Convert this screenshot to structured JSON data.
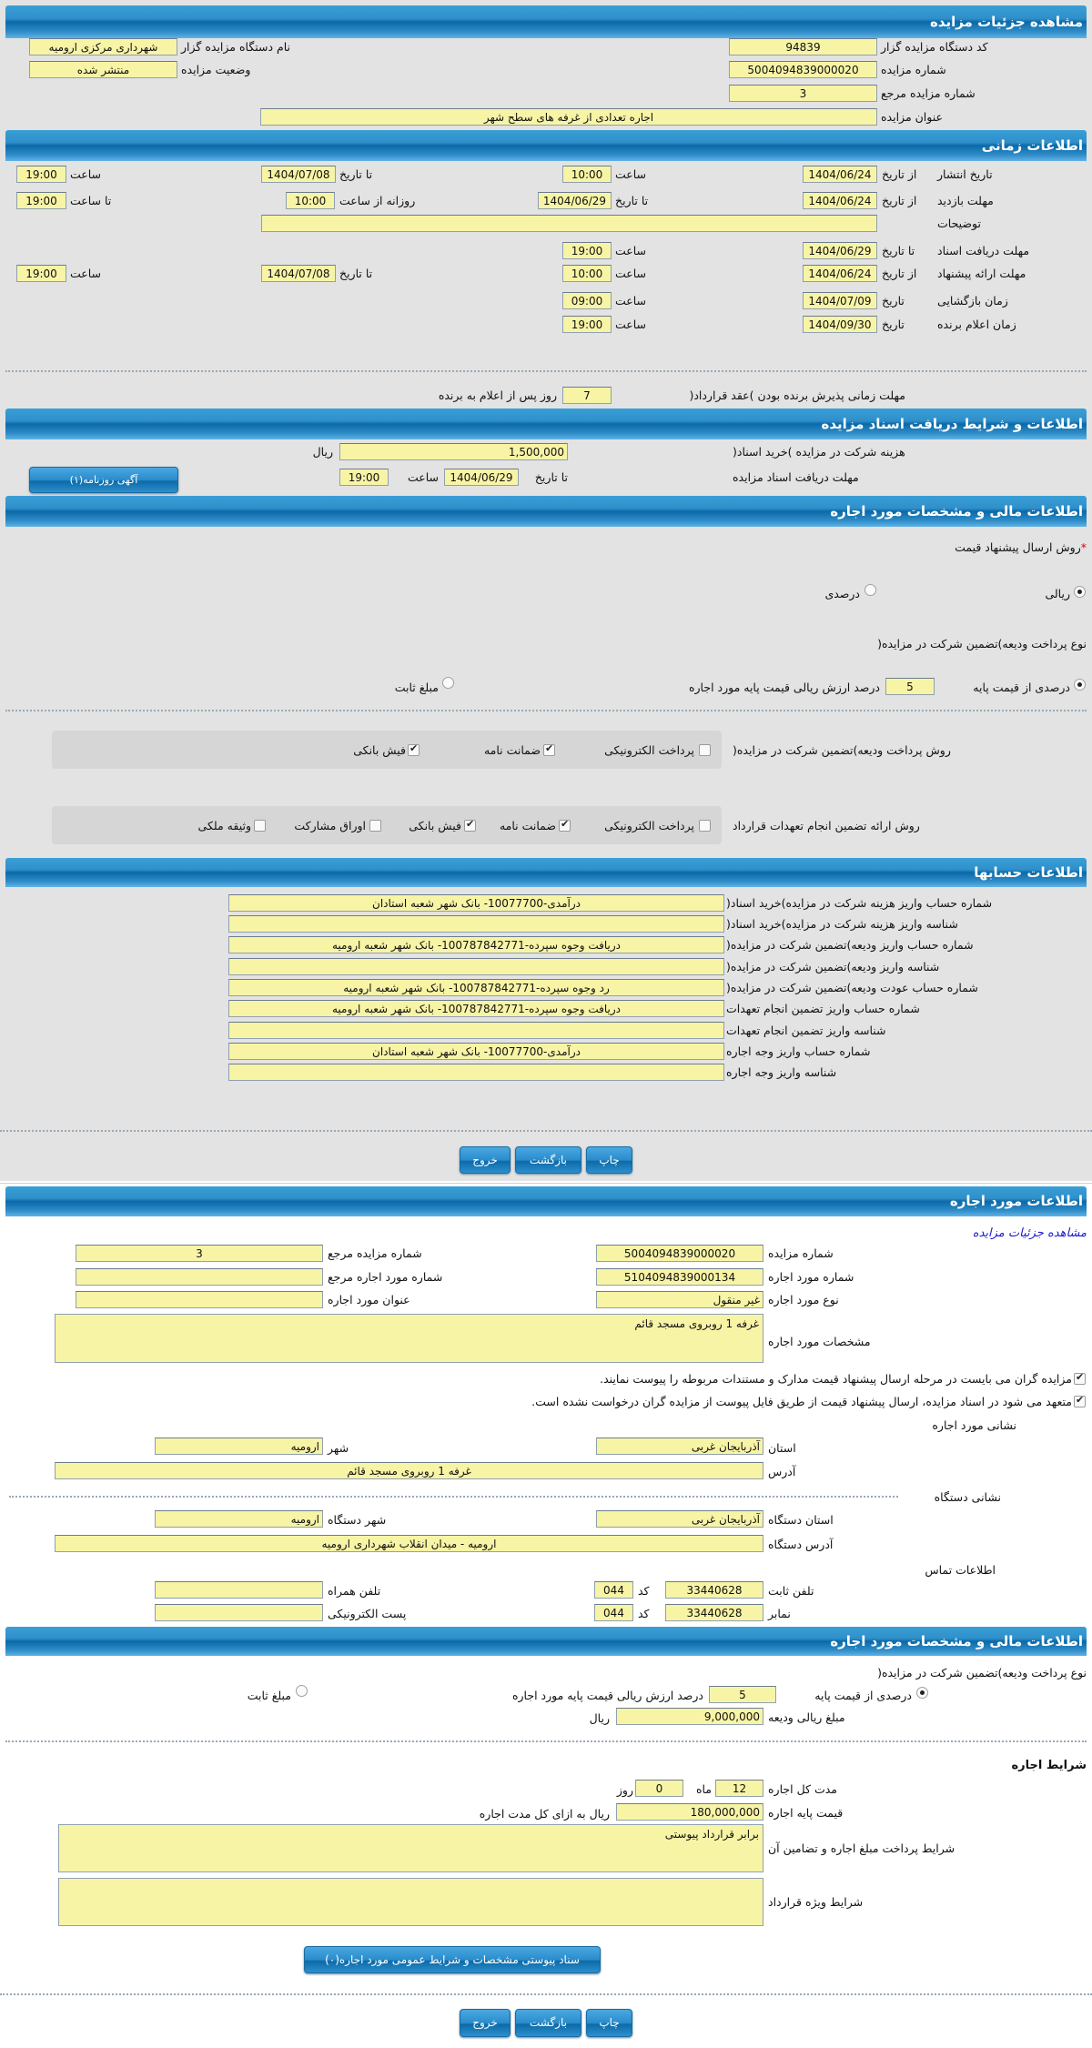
{
  "colors": {
    "header": "#0b69a8",
    "field": "#f7f4a6",
    "page_top": "#e3e3e3",
    "link": "#1a1ad0"
  },
  "header": {
    "title": "مشاهده جزئیات مزایده"
  },
  "auction": {
    "code_label": "کد دستگاه مزایده گزار",
    "code": "94839",
    "number_label": "شماره مزایده",
    "number": "5004094839000020",
    "ref_label": "شماره مزایده مرجع",
    "ref": "3",
    "title_label": "عنوان مزایده",
    "title": "اجاره تعدادی از غرفه های سطح شهر",
    "org_label": "نام دستگاه مزایده گزار",
    "org": "شهرداری مرکزی ارومیه",
    "status_label": "وضعیت مزایده",
    "status": "منتشر شده"
  },
  "timing": {
    "title": "اطلاعات زمانی",
    "publish": {
      "label": "تاریخ انتشار",
      "from_label": "از تاریخ",
      "from_date": "1404/06/24",
      "time_label": "ساعت",
      "from_time": "10:00",
      "to_label": "تا تاریخ",
      "to_date": "1404/07/08",
      "to_time_label": "ساعت",
      "to_time": "19:00"
    },
    "visit": {
      "label": "مهلت بازدید",
      "from_label": "از تاریخ",
      "from_date": "1404/06/24",
      "to_label": "تا تاریخ",
      "to_date": "1404/06/29",
      "daily_label": "روزانه از ساعت",
      "daily_from": "10:00",
      "to_time_label": "تا ساعت",
      "to_time": "19:00"
    },
    "description_label": "توضیحات",
    "description": "",
    "docs": {
      "label": "مهلت دریافت اسناد",
      "to_label": "تا تاریخ",
      "date": "1404/06/29",
      "time_label": "ساعت",
      "time": "19:00"
    },
    "offer": {
      "label": "مهلت ارائه پیشنهاد",
      "from_label": "از تاریخ",
      "from_date": "1404/06/24",
      "time_label": "ساعت",
      "from_time": "10:00",
      "to_label": "تا تاریخ",
      "to_date": "1404/07/08",
      "to_time_label": "ساعت",
      "to_time": "19:00"
    },
    "opening": {
      "label": "زمان بازگشایی",
      "date_label": "تاریخ",
      "date": "1404/07/09",
      "time_label": "ساعت",
      "time": "09:00"
    },
    "winner": {
      "label": "زمان اعلام برنده",
      "date_label": "تاریخ",
      "date": "1404/09/30",
      "time_label": "ساعت",
      "time": "19:00"
    },
    "acceptance": {
      "prefix": "مهلت زمانی پذیرش برنده بودن )عقد قرارداد(",
      "days": "7",
      "suffix": "روز پس از اعلام به برنده"
    }
  },
  "documents": {
    "title": "اطلاعات و شرایط دریافت اسناد مزایده",
    "fee_label": "هزینه شرکت در مزایده )خرید اسناد(",
    "fee": "1,500,000",
    "currency": "ریال",
    "deadline_label": "مهلت دریافت اسناد مزایده",
    "to_label": "تا تاریخ",
    "date": "1404/06/29",
    "time_label": "ساعت",
    "time": "19:00",
    "ad_button": "آگهی روزنامه(۱)"
  },
  "financial": {
    "title": "اطلاعات مالی و مشخصات مورد اجاره",
    "required_mark": "*",
    "method_label": "روش ارسال پیشنهاد قیمت",
    "methods": [
      {
        "label": "ریالی",
        "selected": true
      },
      {
        "label": "درصدی",
        "selected": false
      }
    ],
    "deposit_type_label": "نوع پرداخت ودیعه)تضمین شرکت در مزایده(",
    "pct_option": {
      "label": "درصدی از قیمت پایه",
      "selected": true,
      "value": "5",
      "suffix": "درصد ارزش ریالی قیمت پایه مورد اجاره"
    },
    "fixed_option": {
      "label": "مبلغ ثابت",
      "selected": false
    },
    "pay_method_label": "روش پرداخت ودیعه)تضمین شرکت در مزایده(",
    "pay_methods": [
      {
        "label": "پرداخت الکترونیکی",
        "checked": false
      },
      {
        "label": "ضمانت نامه",
        "checked": true
      },
      {
        "label": "فیش بانکی",
        "checked": true
      }
    ],
    "guarantee_label": "روش ارائه تضمین انجام تعهدات قرارداد",
    "guarantees": [
      {
        "label": "پرداخت الکترونیکی",
        "checked": false
      },
      {
        "label": "ضمانت نامه",
        "checked": true
      },
      {
        "label": "فیش بانکی",
        "checked": true
      },
      {
        "label": "اوراق مشارکت",
        "checked": false
      },
      {
        "label": "وثیقه ملکی",
        "checked": false
      }
    ]
  },
  "accounts": {
    "title": "اطلاعات حسابها",
    "rows": [
      {
        "label": "شماره حساب واریز هزینه شرکت در مزایده)خرید اسناد(",
        "value": "درآمدی-10077700- بانک شهر شعبه استادان"
      },
      {
        "label": "شناسه واریز هزینه شرکت در مزایده)خرید اسناد(",
        "value": ""
      },
      {
        "label": "شماره حساب واریز ودیعه)تضمین شرکت در مزایده(",
        "value": "دریافت وجوه سپرده-100787842771- بانک شهر شعبه ارومیه"
      },
      {
        "label": "شناسه واریز ودیعه)تضمین شرکت در مزایده(",
        "value": ""
      },
      {
        "label": "شماره حساب عودت ودیعه)تضمین شرکت در مزایده(",
        "value": "رد وجوه سپرده-100787842771- بانک شهر شعبه ارومیه"
      },
      {
        "label": "شماره حساب واریز تضمین انجام تعهدات",
        "value": "دریافت وجوه سپرده-100787842771- بانک شهر شعبه ارومیه"
      },
      {
        "label": "شناسه واریز تضمین انجام تعهدات",
        "value": ""
      },
      {
        "label": "شماره حساب واریز وجه اجاره",
        "value": "درآمدی-10077700- بانک شهر شعبه استادان"
      },
      {
        "label": "شناسه واریز وجه اجاره",
        "value": ""
      }
    ]
  },
  "actions": {
    "print": "چاپ",
    "back": "بازگشت",
    "exit": "خروج"
  },
  "lease": {
    "title": "اطلاعات مورد اجاره",
    "link": "مشاهده جزئیات مزایده",
    "auction_number_label": "شماره مزایده",
    "auction_number": "5004094839000020",
    "auction_ref_label": "شماره مزایده مرجع",
    "auction_ref": "3",
    "item_number_label": "شماره مورد اجاره",
    "item_number": "5104094839000134",
    "item_ref_label": "شماره مورد اجاره مرجع",
    "item_ref": "",
    "item_type_label": "نوع مورد اجاره",
    "item_type": "غیر منقول",
    "item_title_label": "عنوان مورد اجاره",
    "item_title": "",
    "specs_label": "مشخصات مورد اجاره",
    "specs": "غرفه 1 روبروی مسجد قائم",
    "notices": [
      {
        "text": "مزایده گران می بایست در مرحله ارسال پیشنهاد قیمت مدارک و مستندات مربوطه را پیوست نمایند.",
        "checked": true
      },
      {
        "text": "متعهد می شود در اسناد مزایده، ارسال پیشنهاد قیمت از طریق فایل پیوست از مزایده گران درخواست نشده است.",
        "checked": true
      }
    ],
    "address_title": "نشانی مورد اجاره",
    "province_label": "استان",
    "province": "آذربایجان غربی",
    "city_label": "شهر",
    "city": "ارومیه",
    "address_label": "آدرس",
    "address": "غرفه 1 روبروی مسجد قائم",
    "org_address_title": "نشانی دستگاه",
    "org_province_label": "استان دستگاه",
    "org_province": "آذربایجان غربی",
    "org_city_label": "شهر دستگاه",
    "org_city": "ارومیه",
    "org_address_label": "آدرس دستگاه",
    "org_address": "ارومیه - میدان انقلاب شهرداری ارومیه",
    "contact_title": "اطلاعات تماس",
    "phone_label": "تلفن ثابت",
    "phone": "33440628",
    "code_label": "کد",
    "phone_code": "044",
    "mobile_label": "تلفن همراه",
    "mobile": "",
    "fax_label": "نمابر",
    "fax": "33440628",
    "fax_code": "044",
    "email_label": "پست الکترونیکی",
    "email": ""
  },
  "lease_financial": {
    "title": "اطلاعات مالی و مشخصات مورد اجاره",
    "deposit_type_label": "نوع پرداخت ودیعه)تضمین شرکت در مزایده(",
    "pct_option": {
      "label": "درصدی از قیمت پایه",
      "selected": true,
      "value": "5",
      "suffix": "درصد ارزش ریالی قیمت پایه مورد اجاره"
    },
    "fixed_option": {
      "label": "مبلغ ثابت",
      "selected": false
    },
    "deposit_amount_label": "مبلغ ریالی ودیعه",
    "deposit_amount": "9,000,000",
    "currency": "ریال"
  },
  "terms": {
    "title": "شرایط اجاره",
    "duration_label": "مدت کل اجاره",
    "months": "12",
    "months_label": "ماه",
    "days": "0",
    "days_label": "روز",
    "base_price_label": "قیمت پایه اجاره",
    "base_price": "180,000,000",
    "base_price_suffix": "ریال به ازای کل مدت اجاره",
    "payment_terms_label": "شرایط پرداخت مبلغ اجاره و تضامین آن",
    "payment_terms": "برابر قرارداد پیوستی",
    "special_terms_label": "شرایط ویژه قرارداد",
    "special_terms": "",
    "attachments_button": "سناد پیوستی مشخصات و شرایط عمومی مورد اجاره(۰)"
  }
}
